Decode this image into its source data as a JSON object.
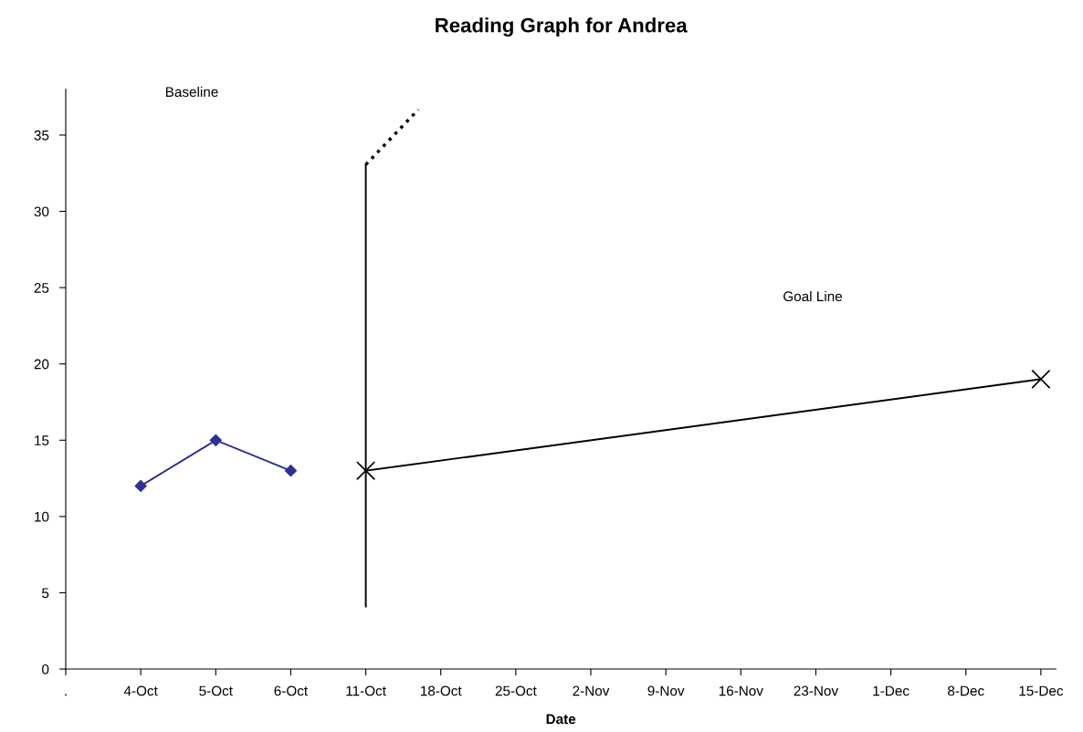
{
  "chart_data": {
    "type": "line",
    "title": "Reading Graph for Andrea",
    "xlabel": "Date",
    "categories": [
      ".",
      "4-Oct",
      "5-Oct",
      "6-Oct",
      "11-Oct",
      "18-Oct",
      "25-Oct",
      "2-Nov",
      "9-Nov",
      "16-Nov",
      "23-Nov",
      "1-Dec",
      "8-Dec",
      "15-Dec"
    ],
    "ylim": [
      0,
      38
    ],
    "yticks": [
      0,
      5,
      10,
      15,
      20,
      25,
      30,
      35
    ],
    "grid": false,
    "legend": false,
    "series": [
      {
        "color": "#2e3192",
        "marker": "diamond",
        "line_style": "solid",
        "values": [
          null,
          12,
          15,
          13,
          null,
          null,
          null,
          null,
          null,
          null,
          null,
          null,
          null,
          null
        ]
      },
      {
        "color": "#000000",
        "marker": "cross",
        "line_style": "solid",
        "values": [
          null,
          null,
          null,
          null,
          13,
          null,
          null,
          null,
          null,
          null,
          null,
          null,
          null,
          19
        ]
      }
    ],
    "ref_lines": [
      {
        "axis": "x",
        "value": "11-Oct",
        "color": "#000000",
        "line_style": "solid"
      }
    ],
    "annotations": [
      "Baseline",
      "Goal Line"
    ]
  }
}
